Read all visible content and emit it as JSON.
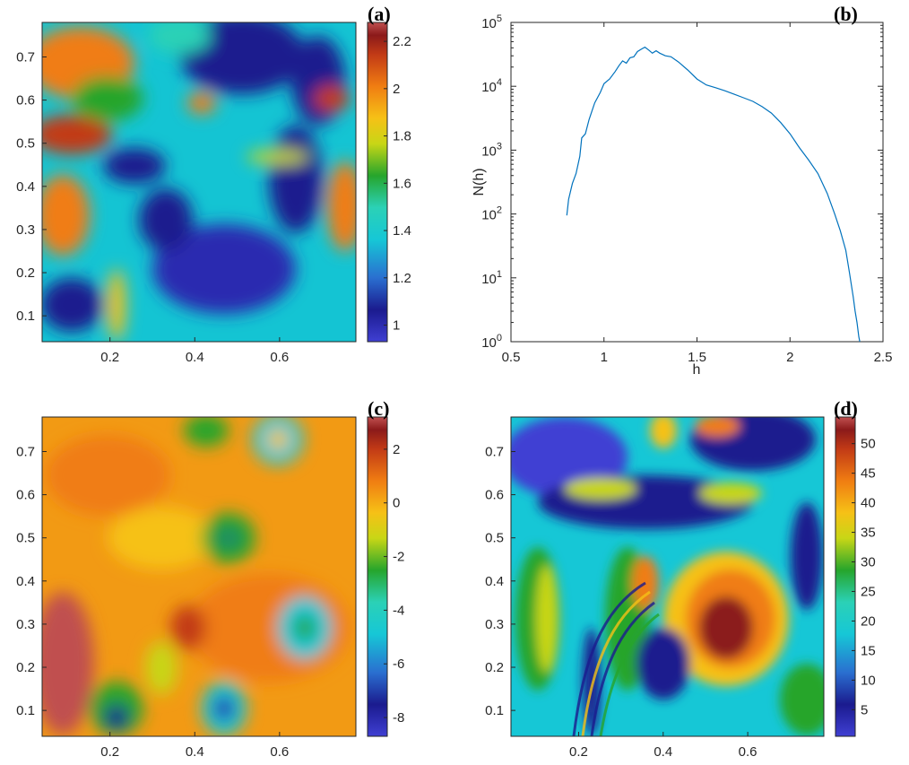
{
  "figure": {
    "panels": [
      {
        "label": "(a)"
      },
      {
        "label": "(b)"
      },
      {
        "label": "(c)"
      },
      {
        "label": "(d)"
      }
    ]
  },
  "colors": {
    "colormap": [
      "#3f3fd3",
      "#1b1b8e",
      "#2a6fd0",
      "#16c7d6",
      "#2bd1b6",
      "#26a52c",
      "#c8d616",
      "#f6c116",
      "#f07d12",
      "#c23a16",
      "#8b1a1a",
      "#c05050"
    ],
    "line": "#0072bd",
    "axis": "#262626"
  },
  "chart_data": [
    {
      "type": "heatmap",
      "panel": "(a)",
      "x_ticks": [
        0.2,
        0.4,
        0.6
      ],
      "y_ticks": [
        0.1,
        0.2,
        0.3,
        0.4,
        0.5,
        0.6,
        0.7
      ],
      "xlim": [
        0.04,
        0.78
      ],
      "ylim": [
        0.04,
        0.78
      ],
      "colorbar": {
        "ticks": [
          1,
          1.2,
          1.4,
          1.6,
          1.8,
          2,
          2.2
        ],
        "range": [
          0.93,
          2.28
        ]
      }
    },
    {
      "type": "line",
      "panel": "(b)",
      "xlabel": "h",
      "ylabel": "N(h)",
      "xlim": [
        0.5,
        2.5
      ],
      "ylim": [
        1,
        100000
      ],
      "yscale": "log",
      "x_ticks": [
        "0.5",
        "1",
        "1.5",
        "2",
        "2.5"
      ],
      "y_ticks": [
        1,
        10,
        100,
        1000,
        10000,
        100000
      ],
      "series": [
        {
          "x": [
            0.8,
            0.81,
            0.83,
            0.85,
            0.87,
            0.88,
            0.9,
            0.92,
            0.95,
            0.98,
            1.0,
            1.03,
            1.06,
            1.08,
            1.1,
            1.12,
            1.14,
            1.16,
            1.18,
            1.2,
            1.22,
            1.24,
            1.26,
            1.28,
            1.3,
            1.33,
            1.36,
            1.4,
            1.45,
            1.5,
            1.55,
            1.6,
            1.65,
            1.7,
            1.75,
            1.8,
            1.85,
            1.9,
            1.95,
            2.0,
            2.05,
            2.1,
            2.15,
            2.2,
            2.24,
            2.27,
            2.3,
            2.32,
            2.34,
            2.35,
            2.36,
            2.37,
            2.375
          ],
          "y": [
            95,
            170,
            300,
            430,
            800,
            1550,
            1800,
            3000,
            5500,
            8000,
            11000,
            13000,
            17000,
            21000,
            25000,
            23000,
            28000,
            29000,
            35000,
            38000,
            41000,
            37000,
            33000,
            36000,
            33000,
            30000,
            29000,
            24000,
            18000,
            13000,
            10500,
            9500,
            8500,
            7500,
            6600,
            5800,
            4800,
            3800,
            2700,
            1800,
            1100,
            700,
            430,
            210,
            100,
            55,
            27,
            12,
            5,
            3,
            2,
            1.2,
            1
          ]
        }
      ]
    },
    {
      "type": "heatmap",
      "panel": "(c)",
      "x_ticks": [
        0.2,
        0.4,
        0.6
      ],
      "y_ticks": [
        0.1,
        0.2,
        0.3,
        0.4,
        0.5,
        0.6,
        0.7
      ],
      "xlim": [
        0.04,
        0.78
      ],
      "ylim": [
        0.04,
        0.78
      ],
      "colorbar": {
        "ticks": [
          -8,
          -6,
          -4,
          -2,
          0,
          2
        ],
        "range": [
          -8.7,
          3.2
        ]
      }
    },
    {
      "type": "heatmap",
      "panel": "(d)",
      "x_ticks": [
        0.2,
        0.4,
        0.6
      ],
      "y_ticks": [
        0.1,
        0.2,
        0.3,
        0.4,
        0.5,
        0.6,
        0.7
      ],
      "xlim": [
        0.04,
        0.78
      ],
      "ylim": [
        0.04,
        0.78
      ],
      "colorbar": {
        "ticks": [
          5,
          10,
          15,
          20,
          25,
          30,
          35,
          40,
          45,
          50
        ],
        "range": [
          0.5,
          54.5
        ]
      }
    }
  ]
}
